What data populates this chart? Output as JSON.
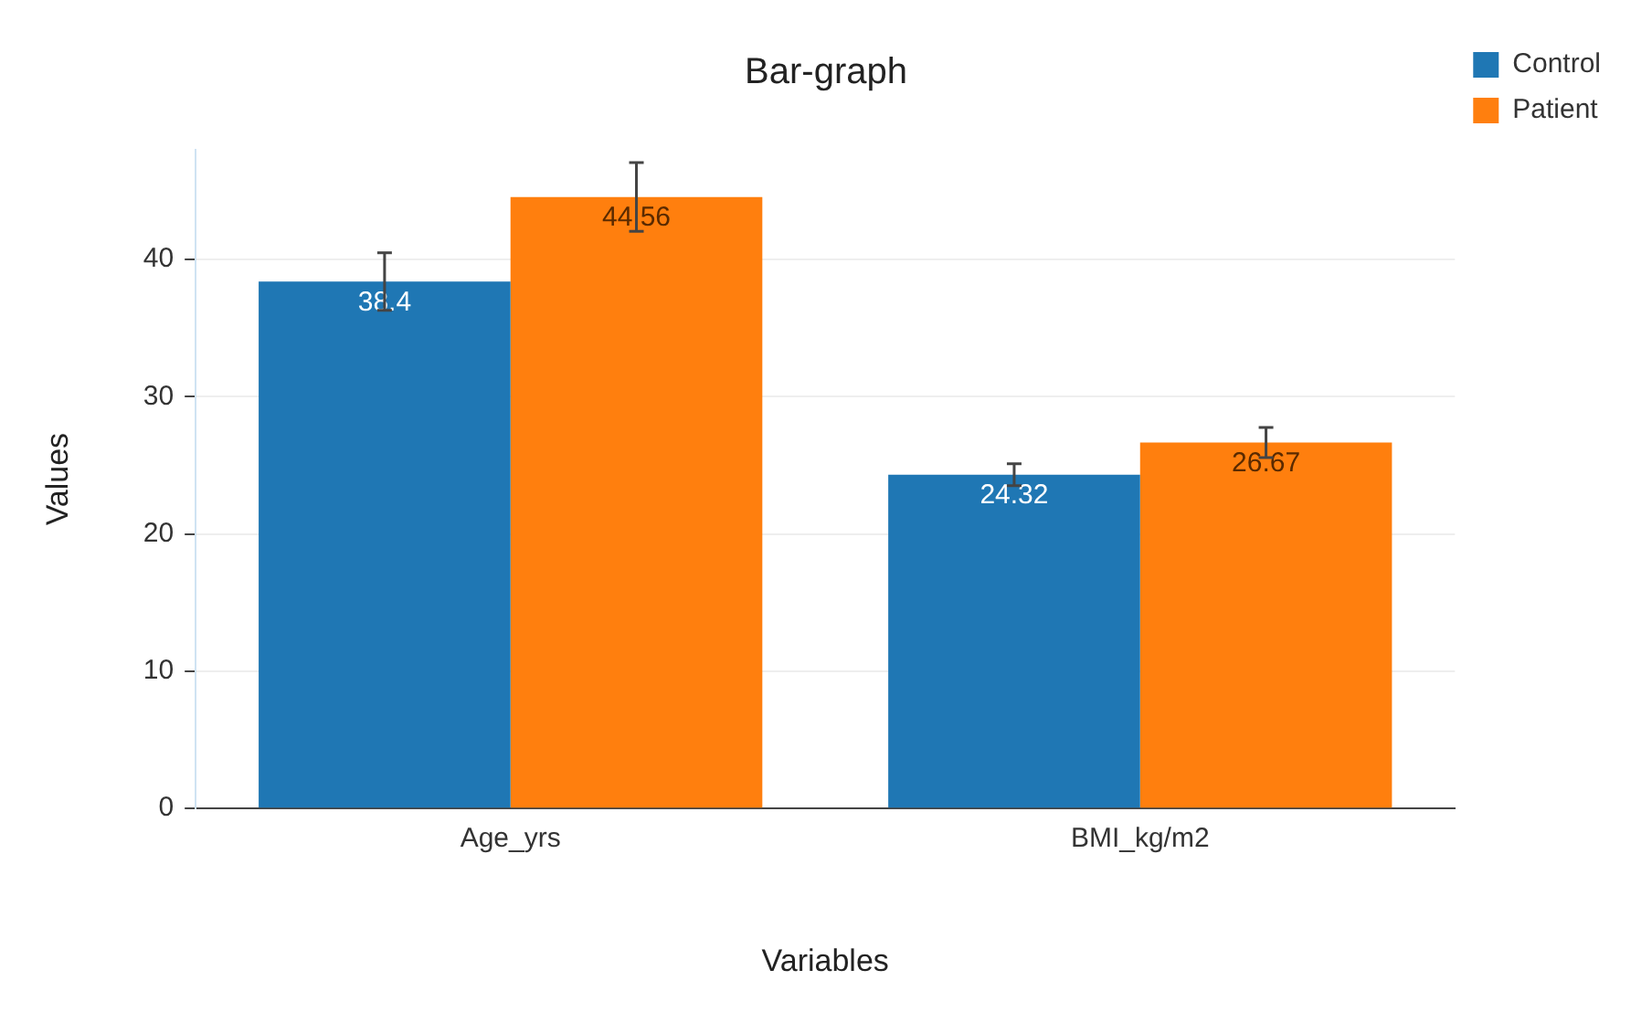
{
  "chart_data": {
    "type": "bar",
    "title": "Bar-graph",
    "xlabel": "Variables",
    "ylabel": "Values",
    "categories": [
      "Age_yrs",
      "BMI_kg/m2"
    ],
    "series": [
      {
        "name": "Control",
        "color": "#1f77b4",
        "values": [
          38.4,
          24.32
        ],
        "errors": [
          2.1,
          0.8
        ]
      },
      {
        "name": "Patient",
        "color": "#ff7f0e",
        "values": [
          44.56,
          26.67
        ],
        "errors": [
          2.5,
          1.1
        ]
      }
    ],
    "ylim": [
      0,
      48
    ],
    "yticks": [
      0,
      10,
      20,
      30,
      40
    ],
    "grid": "y",
    "legend": "top right",
    "data_labels": true
  }
}
